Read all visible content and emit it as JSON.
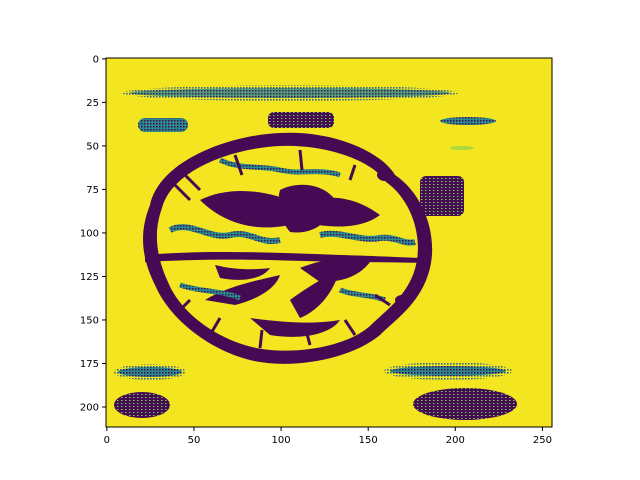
{
  "chart_data": {
    "type": "heatmap",
    "title": "",
    "xlabel": "",
    "ylabel": "",
    "xlim": [
      0,
      256
    ],
    "ylim": [
      212,
      0
    ],
    "x_ticks": [
      "0",
      "50",
      "100",
      "150",
      "200",
      "250"
    ],
    "x_tick_values": [
      0,
      50,
      100,
      150,
      200,
      250
    ],
    "y_ticks": [
      "0",
      "25",
      "50",
      "75",
      "100",
      "125",
      "150",
      "175",
      "200"
    ],
    "y_tick_values": [
      0,
      25,
      50,
      75,
      100,
      125,
      150,
      175,
      200
    ],
    "colormap": "viridis",
    "background_color": "#f3e51f",
    "dark_color": "#440a54",
    "mid_color": "#2b8b8c",
    "content": "binary-thresholded image of a walnut-like round object with blurred horizontal bands",
    "grid": false
  }
}
